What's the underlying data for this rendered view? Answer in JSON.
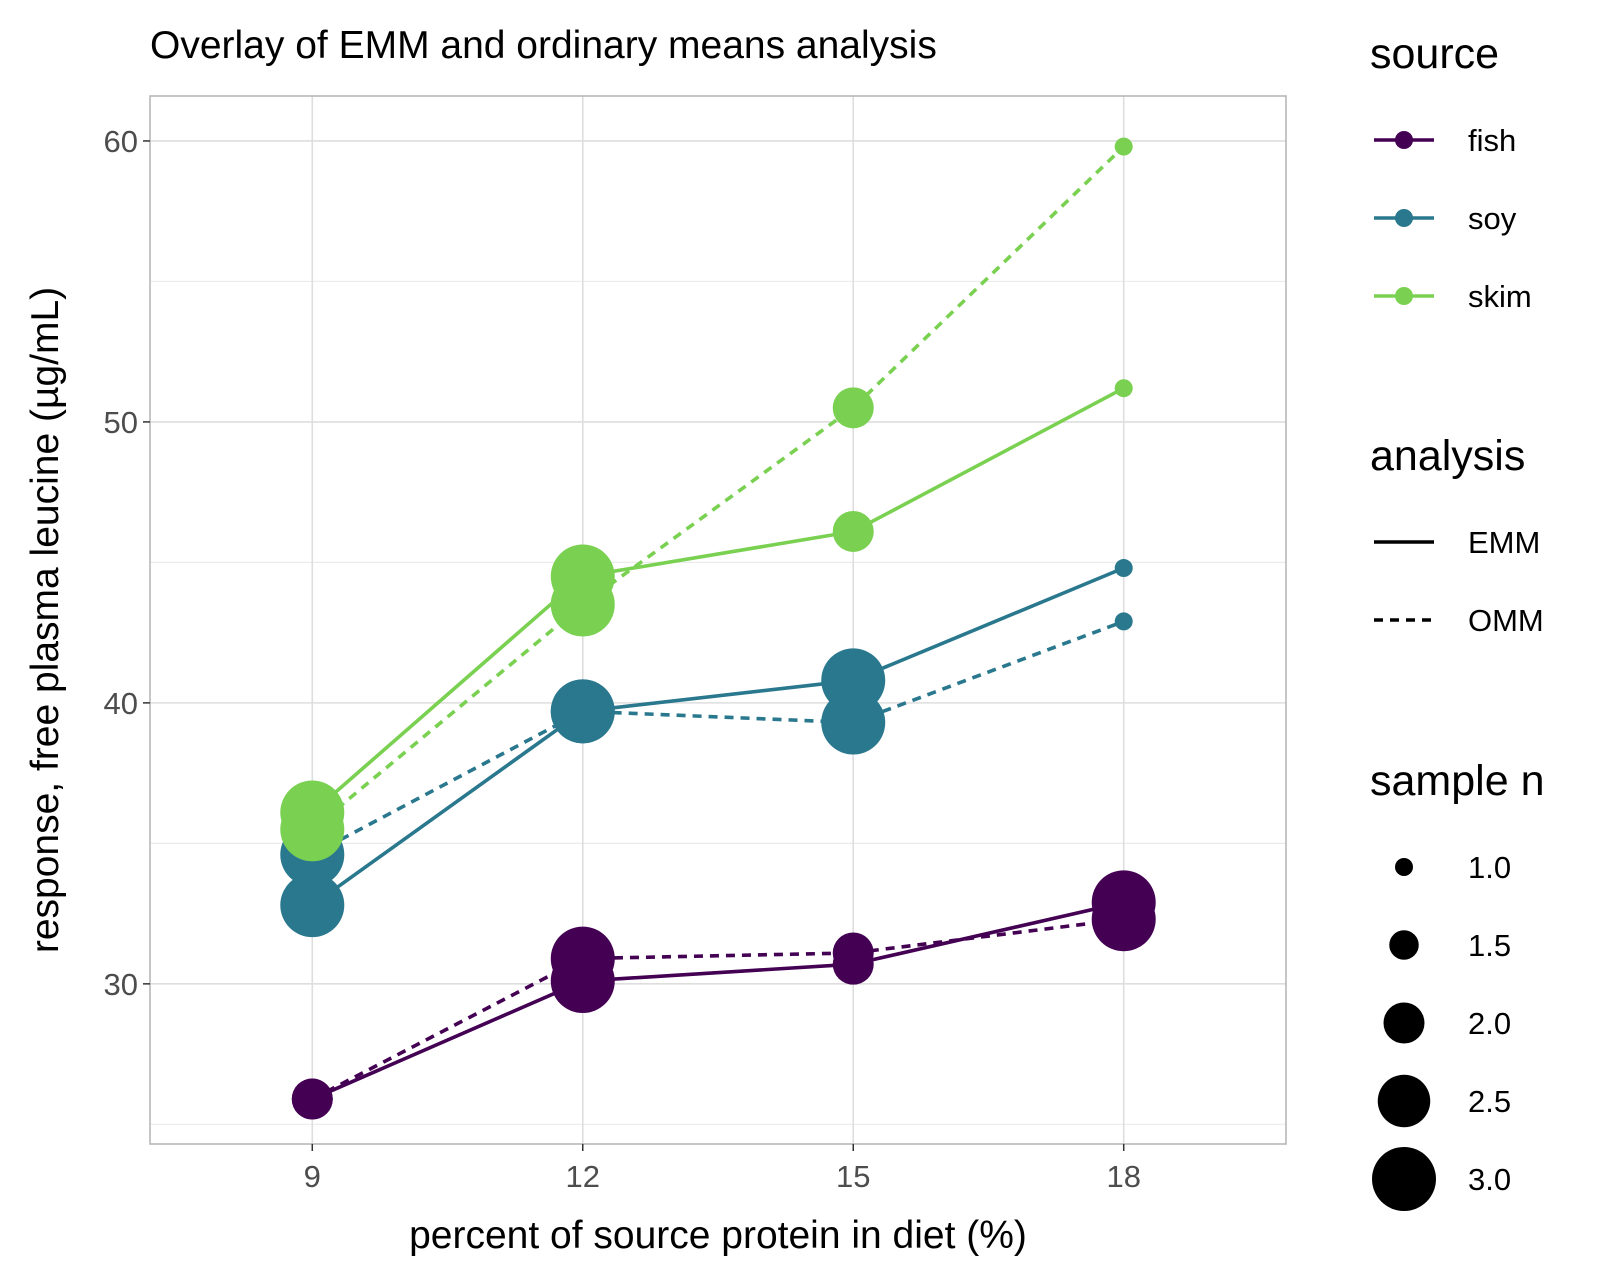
{
  "chart_data": {
    "type": "line",
    "title": "Overlay of EMM and ordinary means analysis",
    "xlabel": "percent of source protein in diet (%)",
    "ylabel": "response, free plasma leucine (µg/mL)",
    "x": [
      9,
      12,
      15,
      18
    ],
    "x_ticks": [
      "9",
      "12",
      "15",
      "18"
    ],
    "y_ticks": [
      "30",
      "40",
      "50",
      "60"
    ],
    "xlim": [
      7.2,
      19.8
    ],
    "ylim": [
      24.3,
      61.6
    ],
    "grid": true,
    "legend_position": "right",
    "legends": {
      "source": {
        "title": "source",
        "entries": [
          {
            "label": "fish",
            "color": "#440154"
          },
          {
            "label": "soy",
            "color": "#2a788e"
          },
          {
            "label": "skim",
            "color": "#7ad151"
          }
        ]
      },
      "analysis": {
        "title": "analysis",
        "entries": [
          {
            "label": "EMM",
            "linestyle": "solid"
          },
          {
            "label": "OMM",
            "linestyle": "dashed"
          }
        ]
      },
      "size": {
        "title": "sample n",
        "entries": [
          {
            "label": "1.0",
            "value": 1.0
          },
          {
            "label": "1.5",
            "value": 1.5
          },
          {
            "label": "2.0",
            "value": 2.0
          },
          {
            "label": "2.5",
            "value": 2.5
          },
          {
            "label": "3.0",
            "value": 3.0
          }
        ]
      }
    },
    "series": [
      {
        "source": "fish",
        "analysis": "EMM",
        "color": "#440154",
        "linestyle": "solid",
        "values": [
          25.9,
          30.1,
          30.7,
          32.9
        ],
        "n": [
          2,
          3,
          2,
          3
        ]
      },
      {
        "source": "fish",
        "analysis": "OMM",
        "color": "#440154",
        "linestyle": "dashed",
        "values": [
          25.9,
          30.9,
          31.1,
          32.3
        ],
        "n": [
          2,
          3,
          2,
          3
        ]
      },
      {
        "source": "soy",
        "analysis": "EMM",
        "color": "#2a788e",
        "linestyle": "solid",
        "values": [
          32.8,
          39.7,
          40.8,
          44.8
        ],
        "n": [
          3,
          3,
          3,
          1
        ]
      },
      {
        "source": "soy",
        "analysis": "OMM",
        "color": "#2a788e",
        "linestyle": "dashed",
        "values": [
          34.6,
          39.7,
          39.3,
          42.9
        ],
        "n": [
          3,
          3,
          3,
          1
        ]
      },
      {
        "source": "skim",
        "analysis": "EMM",
        "color": "#7ad151",
        "linestyle": "solid",
        "values": [
          36.1,
          44.5,
          46.1,
          51.2
        ],
        "n": [
          3,
          3,
          2,
          1
        ]
      },
      {
        "source": "skim",
        "analysis": "OMM",
        "color": "#7ad151",
        "linestyle": "dashed",
        "values": [
          35.5,
          43.5,
          50.5,
          59.8
        ],
        "n": [
          3,
          3,
          2,
          1
        ]
      }
    ]
  }
}
